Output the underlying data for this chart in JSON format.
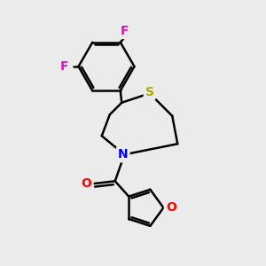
{
  "background_color": "#ebebeb",
  "atom_colors": {
    "F": "#ff00cc",
    "S": "#aaaa00",
    "N": "#0000ff",
    "O": "#ff0000",
    "C": "#000000"
  },
  "bond_color": "#000000",
  "bond_width": 1.8,
  "font_size_atoms": 10
}
